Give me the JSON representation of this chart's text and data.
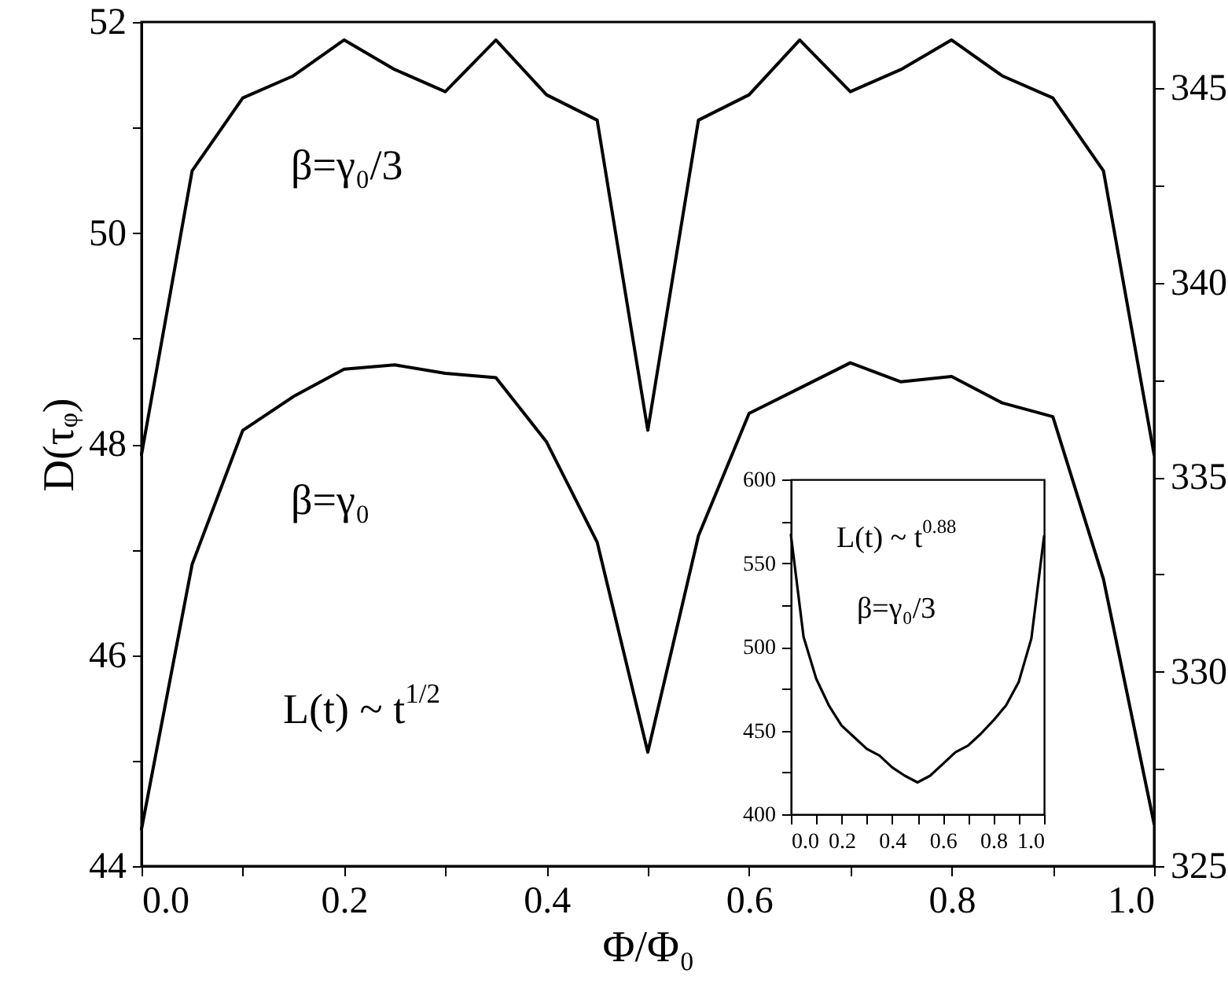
{
  "chart_data": [
    {
      "type": "line",
      "xlabel": "Φ/Φ₀",
      "ylabel": "D(τᵩ)",
      "x": [
        0,
        0.05,
        0.1,
        0.15,
        0.2,
        0.25,
        0.3,
        0.35,
        0.4,
        0.45,
        0.5,
        0.55,
        0.6,
        0.65,
        0.7,
        0.75,
        0.8,
        0.85,
        0.9,
        0.95,
        1
      ],
      "series": [
        {
          "name": "β=γ₀/3",
          "color": "#000000",
          "values": [
            47.9,
            50.59,
            51.28,
            51.49,
            51.83,
            51.55,
            51.34,
            51.83,
            51.31,
            51.07,
            48.13,
            51.07,
            51.31,
            51.83,
            51.34,
            51.55,
            51.83,
            51.49,
            51.28,
            50.59,
            47.9
          ]
        },
        {
          "name": "β=γ₀",
          "color": "#000000",
          "values": [
            44.35,
            46.86,
            48.13,
            48.45,
            48.71,
            48.75,
            48.67,
            48.63,
            48.02,
            47.07,
            45.08,
            47.13,
            48.29,
            48.53,
            48.77,
            48.59,
            48.64,
            48.39,
            48.26,
            46.72,
            44.4
          ]
        }
      ],
      "annotations": [
        "L(t) ~ t$^{1/2}$"
      ],
      "xlim": [
        0,
        1
      ],
      "xticks": [
        {
          "value": 0,
          "label": "0.0"
        },
        {
          "value": 0.1,
          "label": null
        },
        {
          "value": 0.2,
          "label": "0.2"
        },
        {
          "value": 0.3,
          "label": null
        },
        {
          "value": 0.4,
          "label": "0.4"
        },
        {
          "value": 0.5,
          "label": null
        },
        {
          "value": 0.6,
          "label": "0.6"
        },
        {
          "value": 0.7,
          "label": null
        },
        {
          "value": 0.8,
          "label": "0.8"
        },
        {
          "value": 0.9,
          "label": null
        },
        {
          "value": 1,
          "label": "1.0"
        }
      ],
      "ylim": [
        44,
        52
      ],
      "yticks": [
        44,
        {
          "value": 45,
          "label": null
        },
        46,
        {
          "value": 47,
          "label": null
        },
        48,
        {
          "value": 49,
          "label": null
        },
        50,
        {
          "value": 51,
          "label": null
        },
        52
      ],
      "y2lim": [
        325,
        346.7
      ],
      "y2ticks": [
        325,
        {
          "value": 327.5,
          "label": null
        },
        330,
        {
          "value": 332.5,
          "label": null
        },
        335,
        {
          "value": 337.5,
          "label": null
        },
        340,
        {
          "value": 342.5,
          "label": null
        },
        345
      ],
      "line_style": "solid",
      "marker": "none",
      "grid": false
    },
    {
      "type": "line",
      "x": [
        0,
        0.05,
        0.1,
        0.15,
        0.2,
        0.25,
        0.3,
        0.35,
        0.4,
        0.45,
        0.5,
        0.55,
        0.6,
        0.65,
        0.7,
        0.75,
        0.8,
        0.85,
        0.9,
        0.95,
        1
      ],
      "series": [
        {
          "name": "β=γ₀/3",
          "color": "#000000",
          "values": [
            567,
            506,
            481,
            465,
            453,
            446,
            439,
            435,
            428,
            423,
            419,
            423,
            430,
            437,
            441,
            448,
            456,
            465,
            479,
            505,
            566
          ]
        }
      ],
      "annotations": [
        "L(t) ~ t$^{0.88}$"
      ],
      "xlim": [
        0,
        1
      ],
      "xticks": [
        {
          "value": 0,
          "label": "0.0"
        },
        {
          "value": 0.1,
          "label": null
        },
        {
          "value": 0.2,
          "label": "0.2"
        },
        {
          "value": 0.3,
          "label": null
        },
        {
          "value": 0.4,
          "label": "0.4"
        },
        {
          "value": 0.5,
          "label": null
        },
        {
          "value": 0.6,
          "label": "0.6"
        },
        {
          "value": 0.7,
          "label": null
        },
        {
          "value": 0.8,
          "label": "0.8"
        },
        {
          "value": 0.9,
          "label": null
        },
        {
          "value": 1,
          "label": "1.0"
        }
      ],
      "ylim": [
        400,
        600
      ],
      "yticks": [
        400,
        {
          "value": 425,
          "label": null
        },
        450,
        {
          "value": 475,
          "label": null
        },
        500,
        {
          "value": 525,
          "label": null
        },
        550,
        {
          "value": 575,
          "label": null
        },
        600
      ],
      "line_style": "solid",
      "marker": "none",
      "grid": false
    }
  ]
}
